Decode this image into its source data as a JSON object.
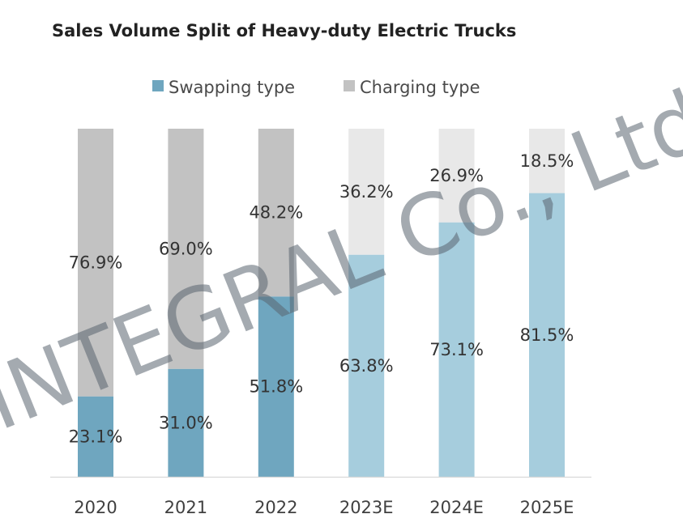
{
  "chart_data": {
    "type": "bar",
    "stacked": true,
    "normalized_percent": true,
    "title": "Sales Volume Split of Heavy-duty Electric Trucks",
    "categories": [
      "2020",
      "2021",
      "2022",
      "2023E",
      "2024E",
      "2025E"
    ],
    "series": [
      {
        "name": "Swapping type",
        "values": [
          23.1,
          31.0,
          51.8,
          63.8,
          73.1,
          81.5
        ],
        "labels": [
          "23.1%",
          "31.0%",
          "51.8%",
          "63.8%",
          "73.1%",
          "81.5%"
        ],
        "color": "#6fa6bf",
        "estimate_color": "#a6cddd"
      },
      {
        "name": "Charging type",
        "values": [
          76.9,
          69.0,
          48.2,
          36.2,
          26.9,
          18.5
        ],
        "labels": [
          "76.9%",
          "69.0%",
          "48.2%",
          "36.2%",
          "26.9%",
          "18.5%"
        ],
        "color": "#c2c2c2",
        "estimate_color": "#e8e8e8"
      }
    ],
    "estimated_categories": [
      "2023E",
      "2024E",
      "2025E"
    ],
    "ylim": [
      0,
      100
    ],
    "grid": false,
    "legend": "top"
  },
  "watermark": "INTEGRAL Co., Ltd"
}
